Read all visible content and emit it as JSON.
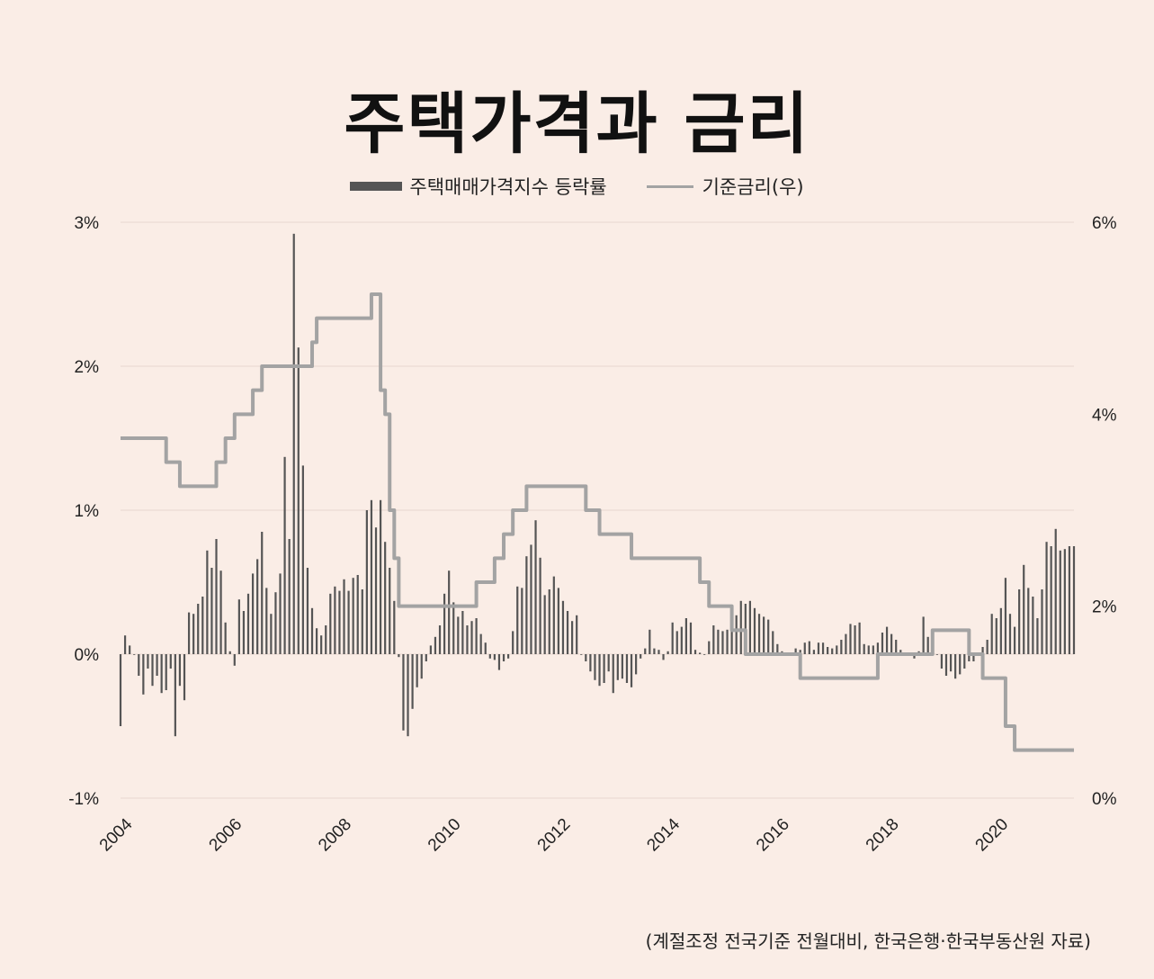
{
  "title": "주택가격과 금리",
  "legend": {
    "bar_label": "주택매매가격지수 등락률",
    "line_label": "기준금리(우)"
  },
  "source": "(계절조정 전국기준 전월대비, 한국은행·한국부동산원 자료)",
  "colors": {
    "background": "#faede6",
    "bars": "#555555",
    "line": "#a3a3a3",
    "grid": "#e8d8d0"
  },
  "chart_data": {
    "type": "bar",
    "x_start": "2004-01",
    "x_end": "2021-06",
    "x_tick_labels": [
      "2004",
      "2006",
      "2008",
      "2010",
      "2012",
      "2014",
      "2016",
      "2018",
      "2020"
    ],
    "y_left": {
      "ylim": [
        -1,
        3
      ],
      "ticks": [
        3,
        2,
        1,
        0,
        -1
      ],
      "tick_labels": [
        "3%",
        "2%",
        "1%",
        "0%",
        "-1%"
      ]
    },
    "y_right": {
      "ylim": [
        0,
        6
      ],
      "ticks": [
        6,
        4,
        2,
        0
      ],
      "tick_labels": [
        "6%",
        "4%",
        "2%",
        "0%"
      ]
    },
    "series": [
      {
        "type": "bar",
        "axis": "left",
        "values": [
          -0.5,
          0.13,
          0.06,
          0.0,
          -0.15,
          -0.28,
          -0.1,
          -0.22,
          -0.15,
          -0.27,
          -0.25,
          -0.1,
          -0.57,
          -0.22,
          -0.32,
          0.29,
          0.28,
          0.35,
          0.4,
          0.72,
          0.6,
          0.8,
          0.58,
          0.22,
          0.02,
          -0.08,
          0.38,
          0.3,
          0.42,
          0.56,
          0.66,
          0.85,
          0.46,
          0.28,
          0.43,
          0.56,
          1.37,
          0.8,
          2.92,
          2.13,
          1.31,
          0.6,
          0.32,
          0.18,
          0.13,
          0.2,
          0.42,
          0.47,
          0.44,
          0.52,
          0.44,
          0.53,
          0.55,
          0.45,
          1.0,
          1.07,
          0.88,
          1.07,
          0.78,
          0.6,
          0.37,
          -0.02,
          -0.53,
          -0.57,
          -0.38,
          -0.23,
          -0.17,
          -0.05,
          0.06,
          0.12,
          0.2,
          0.42,
          0.58,
          0.36,
          0.26,
          0.3,
          0.2,
          0.23,
          0.25,
          0.14,
          0.08,
          -0.03,
          -0.04,
          -0.11,
          -0.05,
          -0.03,
          0.16,
          0.47,
          0.46,
          0.68,
          0.76,
          0.93,
          0.67,
          0.41,
          0.45,
          0.54,
          0.46,
          0.37,
          0.3,
          0.23,
          0.27,
          0.0,
          -0.05,
          -0.12,
          -0.18,
          -0.22,
          -0.2,
          -0.12,
          -0.27,
          -0.18,
          -0.17,
          -0.2,
          -0.23,
          -0.14,
          -0.03,
          0.04,
          0.17,
          0.04,
          0.03,
          -0.04,
          0.02,
          0.22,
          0.16,
          0.19,
          0.25,
          0.22,
          0.03,
          0.01,
          0.0,
          0.09,
          0.2,
          0.17,
          0.16,
          0.17,
          0.2,
          0.27,
          0.37,
          0.35,
          0.37,
          0.32,
          0.28,
          0.26,
          0.24,
          0.16,
          0.07,
          0.02,
          0.0,
          0.0,
          0.04,
          0.03,
          0.08,
          0.09,
          0.03,
          0.08,
          0.08,
          0.05,
          0.04,
          0.06,
          0.1,
          0.14,
          0.21,
          0.2,
          0.22,
          0.07,
          0.06,
          0.06,
          0.08,
          0.15,
          0.19,
          0.14,
          0.1,
          0.03,
          0.01,
          0.0,
          -0.03,
          0.02,
          0.26,
          0.12,
          0.05,
          0.0,
          -0.1,
          -0.15,
          -0.12,
          -0.17,
          -0.14,
          -0.1,
          -0.05,
          -0.05,
          -0.01,
          0.05,
          0.1,
          0.28,
          0.25,
          0.32,
          0.53,
          0.28,
          0.19,
          0.45,
          0.62,
          0.46,
          0.4,
          0.25,
          0.45,
          0.78,
          0.75,
          0.87,
          0.72,
          0.73,
          0.75,
          0.75
        ]
      },
      {
        "type": "line",
        "axis": "right",
        "steps": [
          [
            "2004-01",
            3.75
          ],
          [
            "2004-11",
            3.5
          ],
          [
            "2005-02",
            3.25
          ],
          [
            "2005-10",
            3.5
          ],
          [
            "2005-12",
            3.75
          ],
          [
            "2006-02",
            4.0
          ],
          [
            "2006-06",
            4.25
          ],
          [
            "2006-08",
            4.5
          ],
          [
            "2007-07",
            4.75
          ],
          [
            "2007-08",
            5.0
          ],
          [
            "2008-08",
            5.25
          ],
          [
            "2008-10",
            4.25
          ],
          [
            "2008-11",
            4.0
          ],
          [
            "2008-12",
            3.0
          ],
          [
            "2009-01",
            2.5
          ],
          [
            "2009-02",
            2.0
          ],
          [
            "2010-07",
            2.25
          ],
          [
            "2010-11",
            2.5
          ],
          [
            "2011-01",
            2.75
          ],
          [
            "2011-03",
            3.0
          ],
          [
            "2011-06",
            3.25
          ],
          [
            "2012-07",
            3.0
          ],
          [
            "2012-10",
            2.75
          ],
          [
            "2013-05",
            2.5
          ],
          [
            "2014-08",
            2.25
          ],
          [
            "2014-10",
            2.0
          ],
          [
            "2015-03",
            1.75
          ],
          [
            "2015-06",
            1.5
          ],
          [
            "2016-06",
            1.25
          ],
          [
            "2017-11",
            1.5
          ],
          [
            "2018-11",
            1.75
          ],
          [
            "2019-07",
            1.5
          ],
          [
            "2019-10",
            1.25
          ],
          [
            "2020-03",
            0.75
          ],
          [
            "2020-05",
            0.5
          ],
          [
            "2021-06",
            0.5
          ]
        ]
      }
    ]
  }
}
